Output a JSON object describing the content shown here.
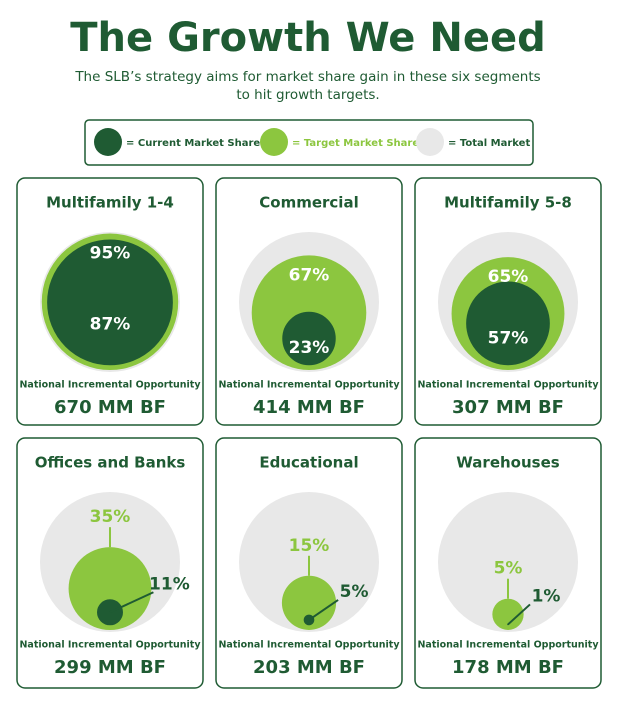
{
  "header": {
    "title": "The Growth We Need",
    "subtitle_lines": [
      "The SLB’s strategy aims for market share gain in these six segments",
      "to hit growth targets."
    ]
  },
  "legend": {
    "current": "= Current Market Share",
    "target": "= Target Market Share",
    "total": "= Total Market"
  },
  "colors": {
    "current": "#1f5b33",
    "target": "#8cc63f",
    "total": "#e8e8e8"
  },
  "panels": [
    {
      "name": "Multifamily 1-4",
      "target": 95,
      "target_label": "95%",
      "current": 87,
      "current_label": "87%",
      "opportunity": "National Incremental Opportunity",
      "amount": "670 MM BF"
    },
    {
      "name": "Commercial",
      "target": 67,
      "target_label": "67%",
      "current": 23,
      "current_label": "23%",
      "opportunity": "National Incremental Opportunity",
      "amount": "414 MM BF"
    },
    {
      "name": "Multifamily 5-8",
      "target": 65,
      "target_label": "65%",
      "current": 57,
      "current_label": "57%",
      "opportunity": "National Incremental Opportunity",
      "amount": "307 MM BF"
    },
    {
      "name": "Offices and Banks",
      "target": 35,
      "target_label": "35%",
      "current": 11,
      "current_label": "11%",
      "opportunity": "National Incremental Opportunity",
      "amount": "299 MM BF"
    },
    {
      "name": "Educational",
      "target": 15,
      "target_label": "15%",
      "current": 5,
      "current_label": "5%",
      "opportunity": "National Incremental Opportunity",
      "amount": "203 MM BF"
    },
    {
      "name": "Warehouses",
      "target": 5,
      "target_label": "5%",
      "current": 1,
      "current_label": "1%",
      "opportunity": "National Incremental Opportunity",
      "amount": "178 MM BF"
    }
  ]
}
